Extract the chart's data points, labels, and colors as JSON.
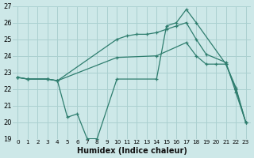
{
  "xlabel": "Humidex (Indice chaleur)",
  "xlim": [
    -0.5,
    23.5
  ],
  "ylim": [
    19,
    27
  ],
  "yticks": [
    19,
    20,
    21,
    22,
    23,
    24,
    25,
    26,
    27
  ],
  "xticks": [
    0,
    1,
    2,
    3,
    4,
    5,
    6,
    7,
    8,
    9,
    10,
    11,
    12,
    13,
    14,
    15,
    16,
    17,
    18,
    19,
    20,
    21,
    22,
    23
  ],
  "bg_color": "#cde8e8",
  "grid_color": "#aad0d0",
  "line_color": "#2e7d6e",
  "line1_x": [
    0,
    1,
    3,
    4,
    5,
    6,
    7,
    8,
    10,
    14,
    15,
    16,
    17,
    18,
    21,
    22,
    23
  ],
  "line1_y": [
    22.7,
    22.6,
    22.6,
    22.5,
    20.3,
    20.5,
    19.0,
    19.0,
    22.6,
    22.6,
    25.8,
    26.0,
    26.8,
    26.0,
    23.5,
    22.1,
    20.0
  ],
  "line2_x": [
    0,
    1,
    3,
    4,
    10,
    11,
    12,
    13,
    14,
    15,
    16,
    17,
    18,
    19,
    21,
    22,
    23
  ],
  "line2_y": [
    22.7,
    22.6,
    22.6,
    22.5,
    25.0,
    25.2,
    25.3,
    25.3,
    25.4,
    25.6,
    25.8,
    26.0,
    25.0,
    24.1,
    23.6,
    21.8,
    20.0
  ],
  "line3_x": [
    0,
    1,
    3,
    4,
    10,
    14,
    17,
    18,
    19,
    20,
    21,
    22,
    23
  ],
  "line3_y": [
    22.7,
    22.6,
    22.6,
    22.5,
    23.9,
    24.0,
    24.8,
    24.0,
    23.5,
    23.5,
    23.5,
    22.0,
    20.0
  ]
}
